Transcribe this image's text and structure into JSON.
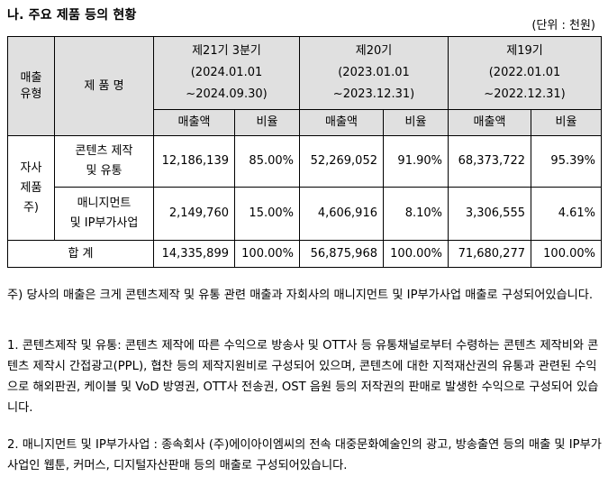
{
  "title": "나. 주요 제품 등의 현황",
  "unit": "(단위 : 천원)",
  "table": {
    "header": {
      "type_label_line1": "매출",
      "type_label_line2": "유형",
      "product_label": "제 품 명",
      "periods": [
        {
          "name": "제21기 3분기",
          "from": "(2024.01.01",
          "to": "~2024.09.30)"
        },
        {
          "name": "제20기",
          "from": "(2023.01.01",
          "to": "~2023.12.31)"
        },
        {
          "name": "제19기",
          "from": "(2022.01.01",
          "to": "~2022.12.31)"
        }
      ],
      "sales_label": "매출액",
      "ratio_label": "비율"
    },
    "category": {
      "line1": "자사",
      "line2": "제품",
      "line3": "주)"
    },
    "rows": [
      {
        "product_line1": "콘텐츠 제작",
        "product_line2": "및 유통",
        "values": [
          "12,186,139",
          "85.00%",
          "52,269,052",
          "91.90%",
          "68,373,722",
          "95.39%"
        ]
      },
      {
        "product_line1": "매니지먼트",
        "product_line2": "및 IP부가사업",
        "values": [
          "2,149,760",
          "15.00%",
          "4,606,916",
          "8.10%",
          "3,306,555",
          "4.61%"
        ]
      }
    ],
    "total": {
      "label": "합 계",
      "values": [
        "14,335,899",
        "100.00%",
        "56,875,968",
        "100.00%",
        "71,680,277",
        "100.00%"
      ]
    }
  },
  "notes": {
    "note_main": "주) 당사의 매출은 크게 콘텐츠제작 및 유통 관련 매출과 자회사의 매니지먼트 및 IP부가사업 매출로 구성되어있습니다.",
    "note1": "1. 콘텐츠제작 및 유통: 콘텐츠 제작에 따른 수익으로 방송사 및 OTT사 등 유통채널로부터 수령하는 콘텐츠 제작비와 콘텐츠 제작시 간접광고(PPL), 협찬 등의 제작지원비로 구성되어 있으며, 콘텐츠에 대한 지적재산권의 유통과 관련된 수익으로 해외판권, 케이블 및 VoD 방영권, OTT사 전송권, OST 음원 등의 저작권의 판매로 발생한 수익으로 구성되어 있습니다.",
    "note2": "2. 매니지먼트 및 IP부가사업 : 종속회사 (주)에이아이엠씨의 전속 대중문화예술인의 광고, 방송출연 등의 매출 및 IP부가사업인 웹툰, 커머스, 디지털자산판매 등의 매출로 구성되어있습니다."
  }
}
